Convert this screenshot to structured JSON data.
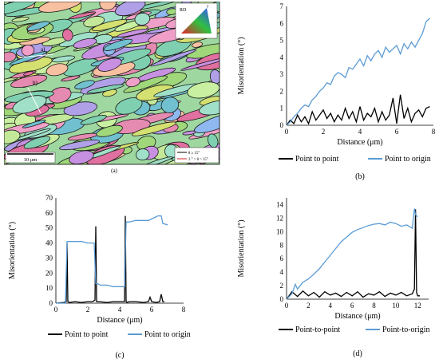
{
  "figure": {
    "panel_a": {
      "label": "(a)",
      "scale_bar_label": "10 μm",
      "marker_1": "a)",
      "marker_2": "b)",
      "ipf_label": "RD",
      "ipf_corner": "y",
      "legend": [
        {
          "text": "θ ≥ 15°",
          "color": "#000000"
        },
        {
          "text": "3 ° > θ > 15°",
          "color": "#d62020"
        }
      ]
    }
  },
  "chart_data": [
    {
      "id": "b",
      "type": "line",
      "panel_label": "(b)",
      "xlabel": "Distance (μm)",
      "ylabel": "Misorientation (°)",
      "xlim": [
        0,
        8
      ],
      "ylim": [
        0,
        7
      ],
      "xticks": [
        0,
        2,
        4,
        6,
        8
      ],
      "yticks": [
        0,
        1,
        2,
        3,
        4,
        5,
        6,
        7
      ],
      "legend_position": "bottom",
      "series": [
        {
          "name": "Point to point",
          "color": "#000000",
          "x": [
            0,
            0.2,
            0.4,
            0.6,
            0.8,
            1.0,
            1.2,
            1.4,
            1.6,
            1.8,
            2.0,
            2.2,
            2.4,
            2.6,
            2.8,
            3.0,
            3.2,
            3.4,
            3.6,
            3.8,
            4.0,
            4.2,
            4.4,
            4.6,
            4.8,
            5.0,
            5.2,
            5.4,
            5.6,
            5.8,
            6.0,
            6.2,
            6.4,
            6.6,
            6.8,
            7.0,
            7.2,
            7.4,
            7.6,
            7.8
          ],
          "y": [
            0,
            0.3,
            0.1,
            0.6,
            0.2,
            0.5,
            0.1,
            0.8,
            0.3,
            0.6,
            0.9,
            0.4,
            0.7,
            0.2,
            0.6,
            0.3,
            1.0,
            0.4,
            0.8,
            0.2,
            1.1,
            0.3,
            0.7,
            0.5,
            1.0,
            0.2,
            0.8,
            0.3,
            0.6,
            1.6,
            0.1,
            1.8,
            0.4,
            1.0,
            0.2,
            0.7,
            0.9,
            0.5,
            1.0,
            1.1
          ]
        },
        {
          "name": "Point to origin",
          "color": "#5b9bd5",
          "x": [
            0,
            0.2,
            0.4,
            0.6,
            0.8,
            1.0,
            1.2,
            1.4,
            1.6,
            1.8,
            2.0,
            2.2,
            2.4,
            2.6,
            2.8,
            3.0,
            3.2,
            3.4,
            3.6,
            3.8,
            4.0,
            4.2,
            4.4,
            4.6,
            4.8,
            5.0,
            5.2,
            5.4,
            5.6,
            5.8,
            6.0,
            6.2,
            6.4,
            6.6,
            6.8,
            7.0,
            7.2,
            7.4,
            7.6,
            7.8
          ],
          "y": [
            0,
            0.2,
            0.5,
            0.7,
            1.0,
            1.2,
            1.1,
            1.5,
            1.7,
            2.0,
            2.2,
            2.5,
            2.4,
            2.9,
            3.1,
            3.0,
            2.8,
            3.4,
            3.3,
            3.6,
            3.9,
            3.5,
            4.1,
            3.8,
            4.2,
            4.4,
            4.0,
            4.6,
            4.3,
            4.5,
            4.7,
            4.2,
            4.8,
            4.5,
            4.9,
            4.6,
            5.0,
            5.4,
            6.1,
            6.3
          ]
        }
      ]
    },
    {
      "id": "c",
      "type": "line",
      "panel_label": "(c)",
      "xlabel": "Distance (μm)",
      "ylabel": "Misorientation (°)",
      "xlim": [
        0,
        8
      ],
      "ylim": [
        0,
        70
      ],
      "xticks": [
        0,
        2,
        4,
        6,
        8
      ],
      "yticks": [
        0,
        10,
        20,
        30,
        40,
        50,
        60,
        70
      ],
      "legend_position": "bottom",
      "series": [
        {
          "name": "Point to point",
          "color": "#000000",
          "x": [
            0,
            0.5,
            0.65,
            0.7,
            0.75,
            0.85,
            1.2,
            1.6,
            2.0,
            2.3,
            2.45,
            2.5,
            2.55,
            2.7,
            3.2,
            3.6,
            4.0,
            4.3,
            4.35,
            4.4,
            4.45,
            4.6,
            5.0,
            5.5,
            5.8,
            5.9,
            6.0,
            6.3,
            6.5,
            6.6,
            6.7,
            6.8
          ],
          "y": [
            0,
            0.5,
            1,
            40,
            1,
            0.5,
            1,
            0.5,
            1,
            1,
            2,
            51,
            1,
            1,
            0.5,
            1,
            1,
            1,
            58,
            1,
            0.5,
            1,
            1,
            0.5,
            1,
            4,
            1,
            0.5,
            1,
            6,
            1,
            1
          ]
        },
        {
          "name": "Point to origin",
          "color": "#5b9bd5",
          "x": [
            0,
            0.6,
            0.7,
            0.8,
            1.2,
            1.6,
            2.0,
            2.4,
            2.5,
            2.6,
            2.8,
            3.2,
            3.6,
            4.0,
            4.3,
            4.4,
            4.6,
            5.0,
            5.4,
            5.8,
            6.2,
            6.4,
            6.6,
            6.7,
            7.0
          ],
          "y": [
            0,
            0,
            41,
            41,
            41,
            41,
            40,
            40,
            13,
            13,
            12,
            12,
            11,
            11,
            11,
            54,
            54,
            55,
            55,
            55,
            57,
            58,
            58,
            53,
            52
          ]
        }
      ]
    },
    {
      "id": "d",
      "type": "line",
      "panel_label": "(d)",
      "xlabel": "Distance (μm)",
      "ylabel": "Misorientation (°)",
      "xlim": [
        0,
        13
      ],
      "ylim": [
        0,
        15
      ],
      "xticks": [
        0,
        2,
        4,
        6,
        8,
        10,
        12
      ],
      "yticks": [
        0,
        2,
        4,
        6,
        8,
        10,
        12,
        14
      ],
      "legend_position": "bottom",
      "series": [
        {
          "name": "Point-to-point",
          "color": "#000000",
          "x": [
            0,
            0.5,
            1,
            1.5,
            2,
            2.5,
            3,
            3.5,
            4,
            4.5,
            5,
            5.5,
            6,
            6.5,
            7,
            7.5,
            8,
            8.5,
            9,
            9.5,
            10,
            10.5,
            11,
            11.5,
            11.7,
            11.8,
            11.9,
            12,
            12.2
          ],
          "y": [
            0,
            1.1,
            0.4,
            1.2,
            0.5,
            1.0,
            0.3,
            1.1,
            0.6,
            0.9,
            0.4,
            1.0,
            0.5,
            1.1,
            0.3,
            0.8,
            0.6,
            1.1,
            0.4,
            0.9,
            0.6,
            1.0,
            0.5,
            0.8,
            1.5,
            13.3,
            1.0,
            0.5,
            0.5
          ]
        },
        {
          "name": "Point-to-origin",
          "color": "#5b9bd5",
          "x": [
            0,
            0.5,
            0.8,
            1,
            1.5,
            2,
            2.5,
            3,
            3.5,
            4,
            4.5,
            5,
            5.5,
            6,
            6.5,
            7,
            7.5,
            8,
            8.5,
            9,
            9.5,
            10,
            10.5,
            11,
            11.5,
            11.7,
            11.8,
            12
          ],
          "y": [
            0,
            0.8,
            2.2,
            1.5,
            2.5,
            3.0,
            3.7,
            4.5,
            5.5,
            6.5,
            7.5,
            8.5,
            9.2,
            9.9,
            10.3,
            10.6,
            10.9,
            11.1,
            11.2,
            11.0,
            11.4,
            11.2,
            10.8,
            11.0,
            10.5,
            13.4,
            12.5,
            12.2
          ]
        }
      ]
    }
  ]
}
